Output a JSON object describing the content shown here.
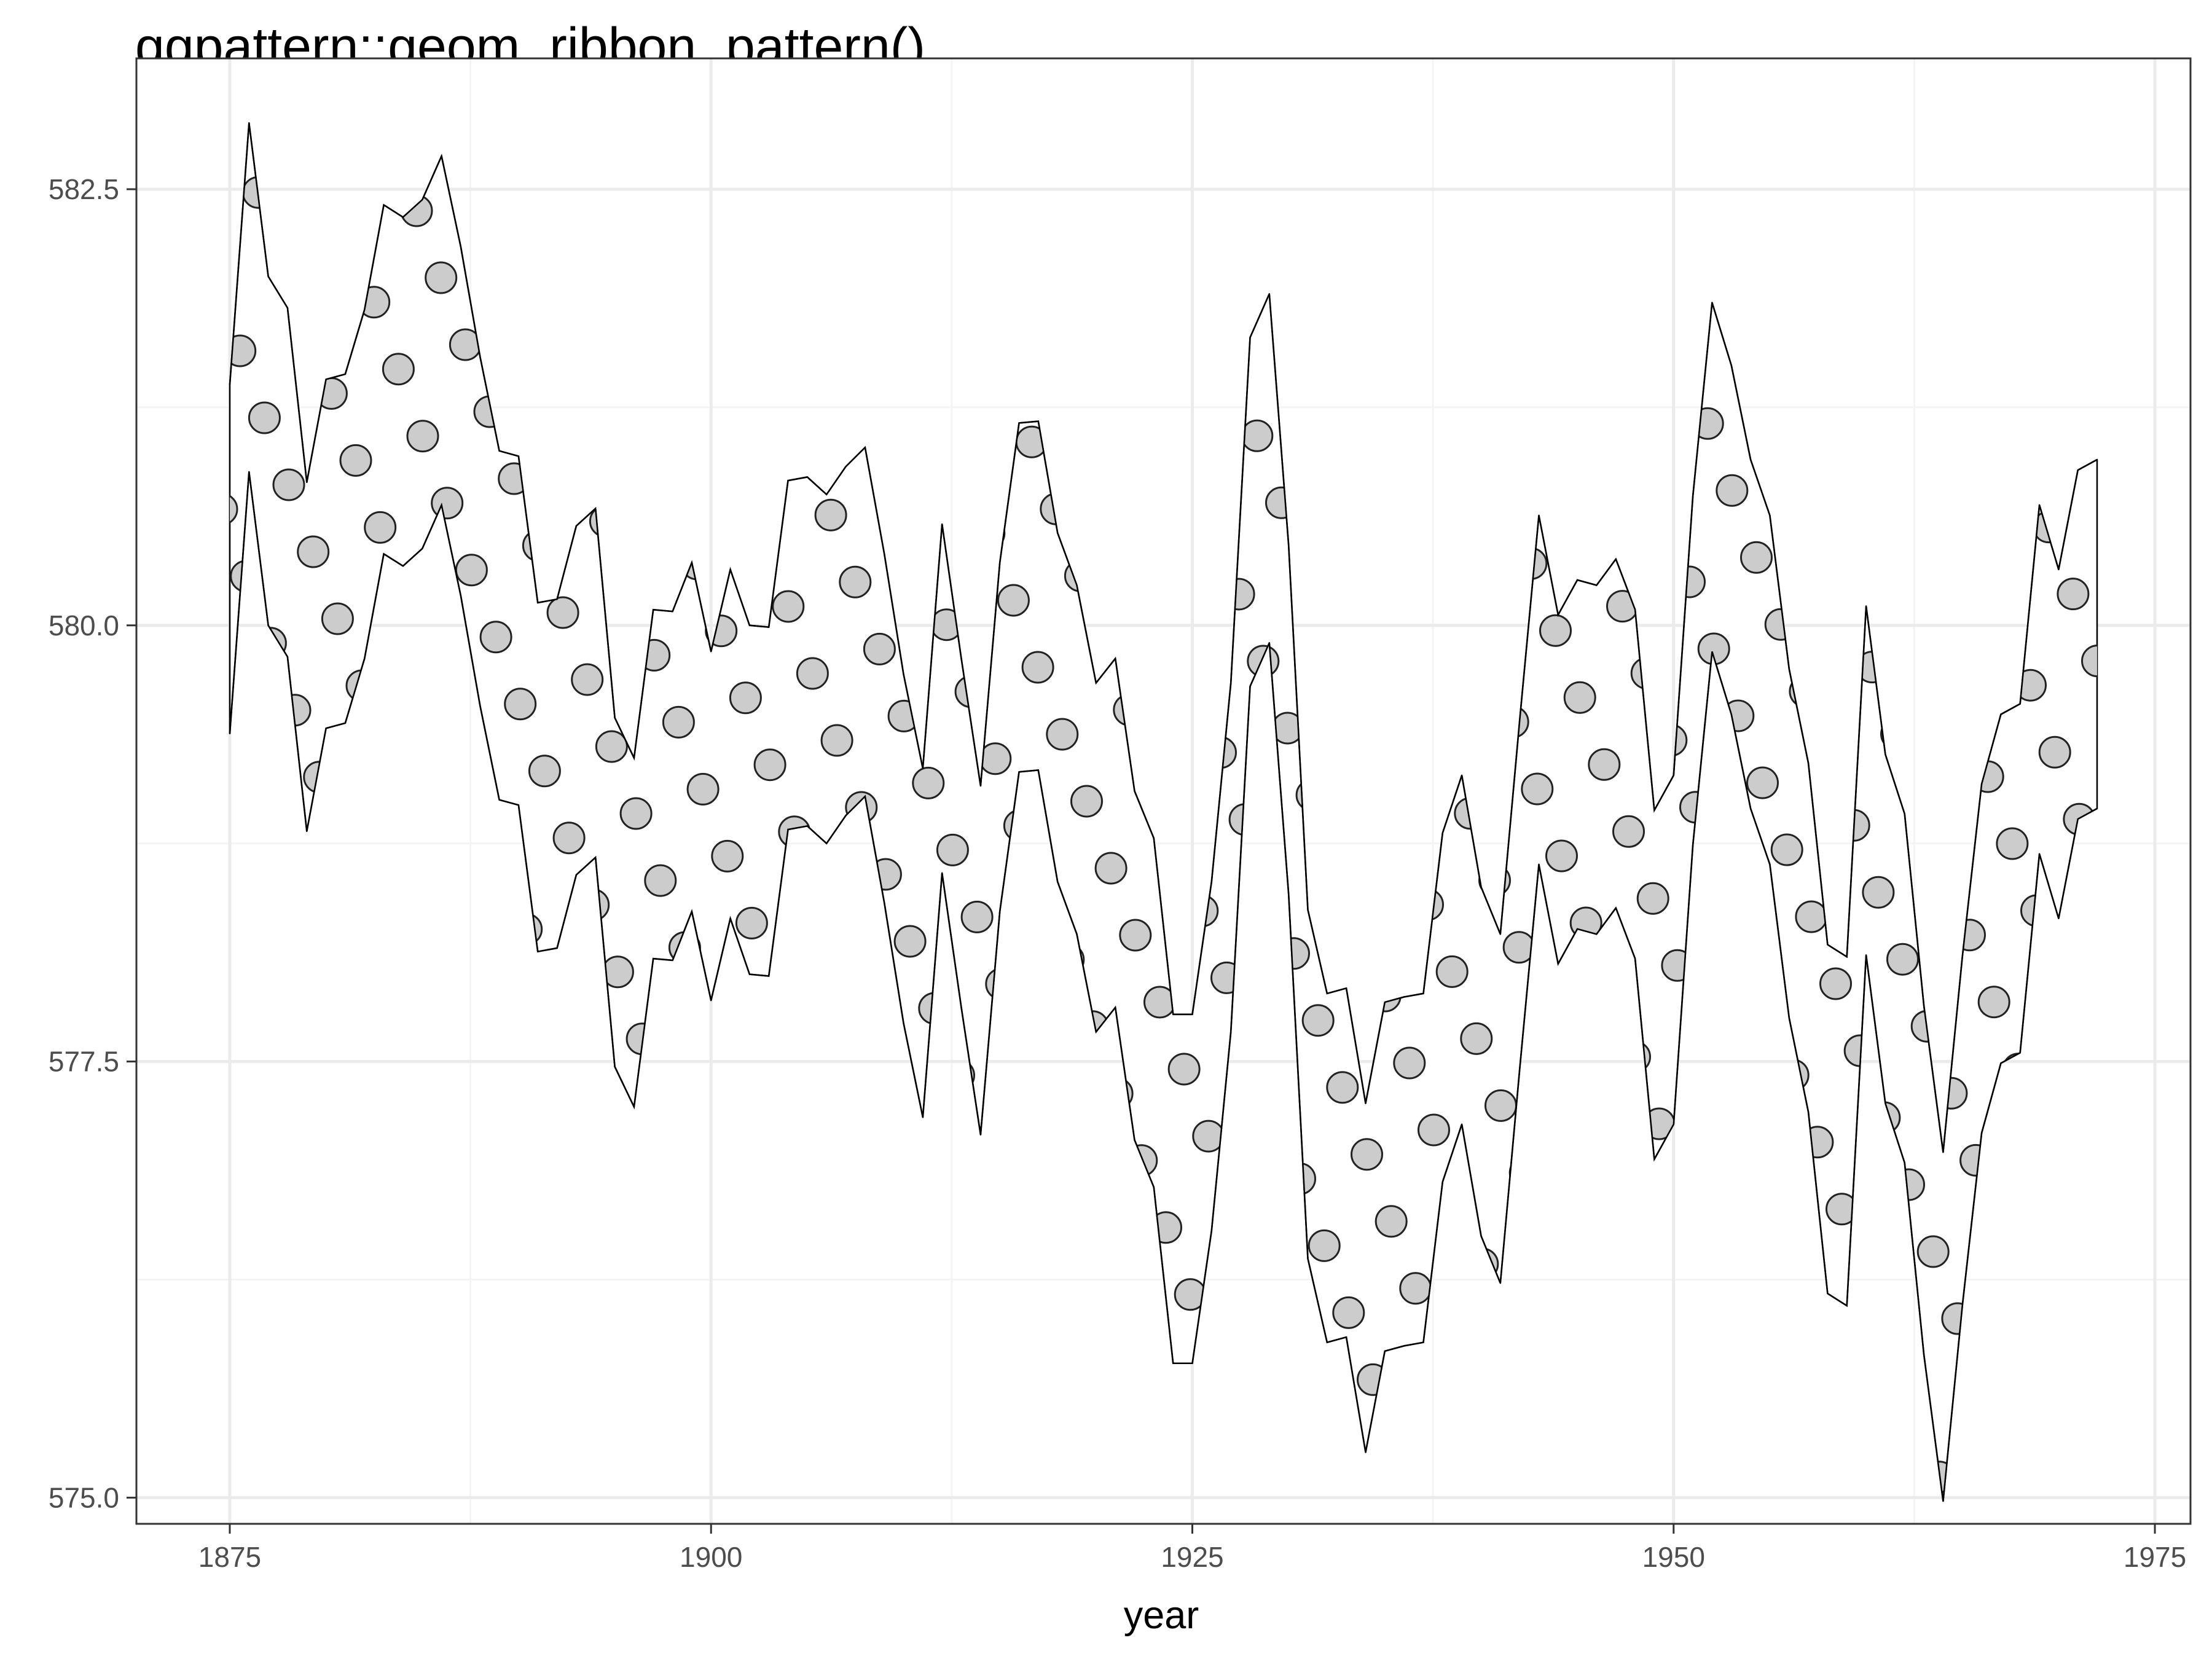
{
  "chart_data": {
    "type": "area",
    "title": "ggpattern::geom_ribbon_pattern()",
    "xlabel": "year",
    "ylabel": "",
    "xlim": [
      1870.15,
      1976.85
    ],
    "ylim": [
      574.85,
      583.25
    ],
    "xticks": [
      1875,
      1900,
      1925,
      1950,
      1975
    ],
    "yticks": [
      575.0,
      577.5,
      580.0,
      582.5
    ],
    "ytick_labels": [
      "575.0",
      "577.5",
      "580.0",
      "582.5"
    ],
    "grid": true,
    "legend": "none",
    "pattern": "circle",
    "colors": {
      "ribbon_fill": "#ffffff",
      "ribbon_outline": "#000000",
      "pattern_fill": "#cccccc",
      "pattern_outline": "#222222",
      "grid_major": "#ebebeb",
      "grid_minor": "#f4f4f4",
      "panel_border": "#333333"
    },
    "series": [
      {
        "x": [
          1875,
          1876,
          1877,
          1878,
          1879,
          1880,
          1881,
          1882,
          1883,
          1884,
          1885,
          1886,
          1887,
          1888,
          1889,
          1890,
          1891,
          1892,
          1893,
          1894,
          1895,
          1896,
          1897,
          1898,
          1899,
          1900,
          1901,
          1902,
          1903,
          1904,
          1905,
          1906,
          1907,
          1908,
          1909,
          1910,
          1911,
          1912,
          1913,
          1914,
          1915,
          1916,
          1917,
          1918,
          1919,
          1920,
          1921,
          1922,
          1923,
          1924,
          1925,
          1926,
          1927,
          1928,
          1929,
          1930,
          1931,
          1932,
          1933,
          1934,
          1935,
          1936,
          1937,
          1938,
          1939,
          1940,
          1941,
          1942,
          1943,
          1944,
          1945,
          1946,
          1947,
          1948,
          1949,
          1950,
          1951,
          1952,
          1953,
          1954,
          1955,
          1956,
          1957,
          1958,
          1959,
          1960,
          1961,
          1962,
          1963,
          1964,
          1965,
          1966,
          1967,
          1968,
          1969,
          1970,
          1971,
          1972
        ],
        "ymin": [
          579.38,
          580.88,
          580.0,
          579.82,
          578.82,
          579.41,
          579.44,
          579.81,
          580.41,
          580.34,
          580.44,
          580.69,
          580.17,
          579.54,
          579.0,
          578.97,
          578.13,
          578.15,
          578.57,
          578.67,
          577.47,
          577.24,
          578.09,
          578.08,
          578.36,
          577.85,
          578.32,
          578.0,
          577.99,
          578.83,
          578.85,
          578.75,
          578.91,
          579.02,
          578.41,
          577.72,
          577.18,
          578.58,
          577.81,
          577.08,
          578.36,
          579.16,
          579.17,
          578.53,
          578.23,
          577.67,
          577.81,
          577.05,
          576.78,
          575.77,
          575.77,
          576.53,
          577.67,
          579.65,
          579.9,
          578.46,
          576.37,
          575.89,
          575.92,
          575.26,
          575.84,
          575.87,
          575.89,
          576.81,
          577.14,
          576.5,
          576.23,
          577.45,
          578.63,
          578.06,
          578.26,
          578.23,
          578.38,
          578.09,
          576.94,
          577.14,
          578.74,
          579.85,
          579.49,
          578.95,
          578.63,
          577.75,
          577.21,
          576.17,
          576.1,
          578.11,
          577.26,
          576.92,
          575.82,
          574.98,
          576.1,
          577.09,
          577.49,
          577.55,
          578.69,
          578.32,
          578.89,
          578.95
        ],
        "ymax": [
          581.38,
          582.88,
          582.0,
          581.82,
          580.82,
          581.41,
          581.44,
          581.81,
          582.41,
          582.34,
          582.44,
          582.69,
          582.17,
          581.54,
          581.0,
          580.97,
          580.13,
          580.15,
          580.57,
          580.67,
          579.47,
          579.24,
          580.09,
          580.08,
          580.36,
          579.85,
          580.32,
          580.0,
          579.99,
          580.83,
          580.85,
          580.75,
          580.91,
          581.02,
          580.41,
          579.72,
          579.18,
          580.58,
          579.81,
          579.08,
          580.36,
          581.16,
          581.17,
          580.53,
          580.23,
          579.67,
          579.81,
          579.05,
          578.78,
          577.77,
          577.77,
          578.53,
          579.67,
          581.65,
          581.9,
          580.46,
          578.37,
          577.89,
          577.92,
          577.26,
          577.84,
          577.87,
          577.89,
          578.81,
          579.14,
          578.5,
          578.23,
          579.45,
          580.63,
          580.06,
          580.26,
          580.23,
          580.38,
          580.09,
          578.94,
          579.14,
          580.74,
          581.85,
          581.49,
          580.95,
          580.63,
          579.75,
          579.21,
          578.17,
          578.1,
          580.11,
          579.26,
          578.92,
          577.82,
          576.98,
          578.1,
          579.09,
          579.49,
          579.55,
          580.69,
          580.32,
          580.89,
          580.95
        ]
      }
    ]
  }
}
